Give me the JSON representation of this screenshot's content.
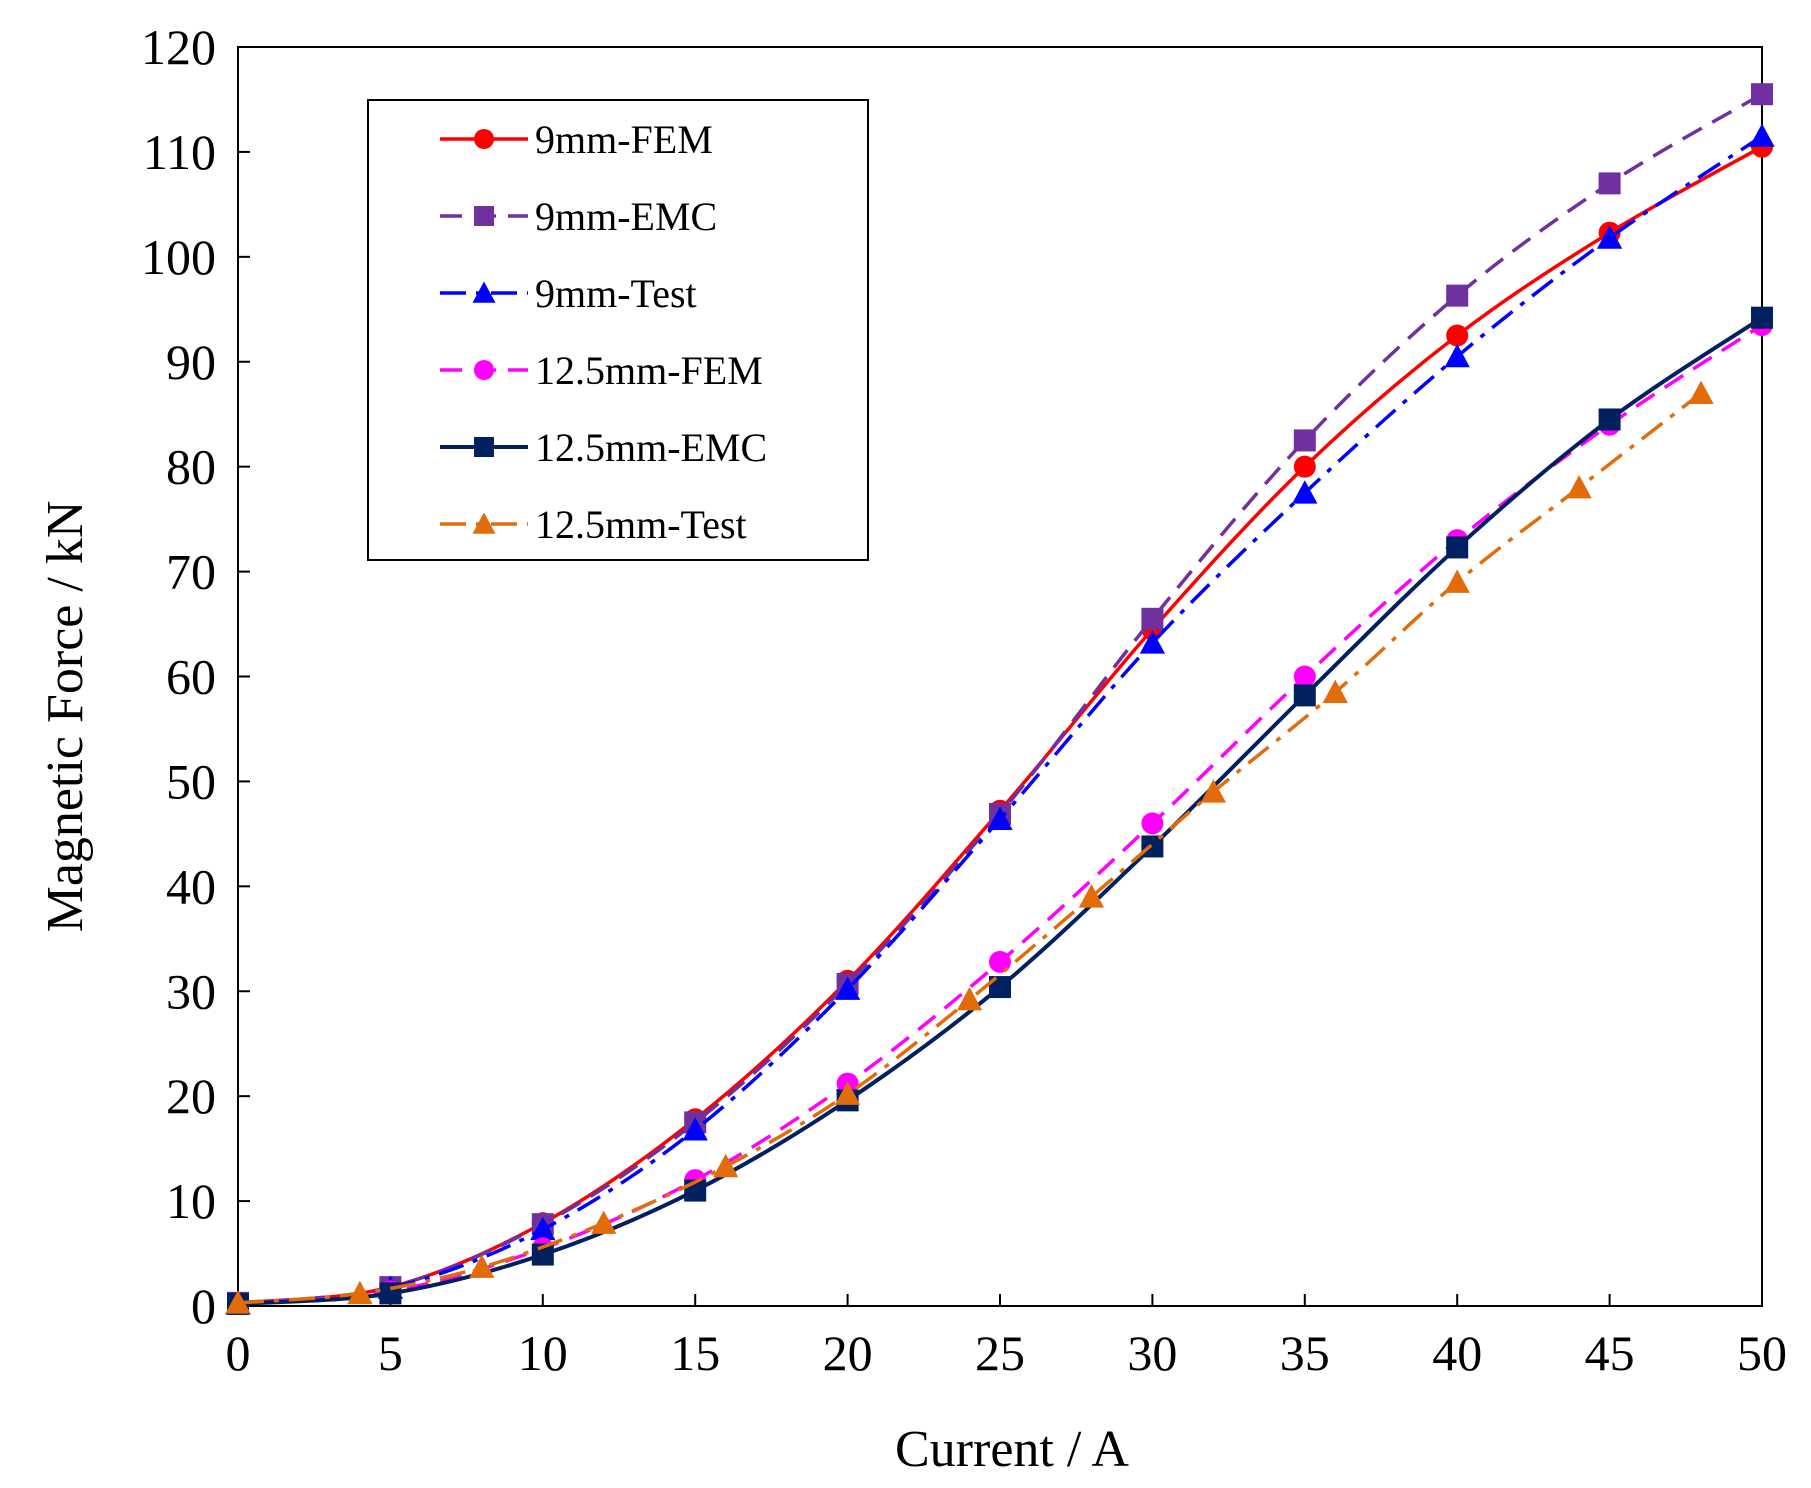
{
  "chart_data": {
    "type": "line",
    "title": "",
    "xlabel": "Current / A",
    "ylabel": "Magnetic Force / kN",
    "xlim": [
      0,
      50
    ],
    "ylim": [
      0,
      120
    ],
    "xticks": [
      0,
      5,
      10,
      15,
      20,
      25,
      30,
      35,
      40,
      45,
      50
    ],
    "yticks": [
      0,
      10,
      20,
      30,
      40,
      50,
      60,
      70,
      80,
      90,
      100,
      110,
      120
    ],
    "grid": false,
    "legend_position": "top-left",
    "series": [
      {
        "name": "9mm-FEM",
        "color": "#ff0000",
        "line_style": "solid",
        "marker": "circle",
        "x": [
          0,
          5,
          10,
          15,
          20,
          25,
          30,
          35,
          40,
          45,
          50
        ],
        "y": [
          0.3,
          1.8,
          7.9,
          17.8,
          31.0,
          47.2,
          64.5,
          80.0,
          92.5,
          102.3,
          110.5
        ]
      },
      {
        "name": "9mm-EMC",
        "color": "#7030a0",
        "line_style": "dashed",
        "marker": "square",
        "x": [
          0,
          5,
          10,
          15,
          20,
          25,
          30,
          35,
          40,
          45,
          50
        ],
        "y": [
          0.3,
          1.8,
          7.8,
          17.5,
          30.7,
          46.9,
          65.5,
          82.5,
          96.3,
          107.0,
          115.5
        ]
      },
      {
        "name": "9mm-Test",
        "color": "#0000ff",
        "line_style": "dash-dot",
        "marker": "triangle",
        "x": [
          0,
          5,
          10,
          15,
          20,
          25,
          30,
          35,
          40,
          45,
          50
        ],
        "y": [
          0.2,
          1.7,
          7.3,
          16.8,
          30.2,
          46.4,
          63.2,
          77.5,
          90.5,
          101.8,
          111.5
        ]
      },
      {
        "name": "12.5mm-FEM",
        "color": "#ff00ff",
        "line_style": "dashed",
        "marker": "circle",
        "x": [
          0,
          5,
          10,
          15,
          20,
          25,
          30,
          35,
          40,
          45,
          50
        ],
        "y": [
          0.2,
          1.4,
          5.5,
          12.0,
          21.2,
          32.8,
          46.0,
          60.0,
          73.0,
          84.0,
          93.5
        ]
      },
      {
        "name": "12.5mm-EMC",
        "color": "#002060",
        "line_style": "solid",
        "marker": "square",
        "x": [
          0,
          5,
          10,
          15,
          20,
          25,
          30,
          35,
          40,
          45,
          50
        ],
        "y": [
          0.2,
          1.2,
          4.9,
          11.0,
          19.6,
          30.4,
          43.8,
          58.2,
          72.3,
          84.5,
          94.2
        ]
      },
      {
        "name": "12.5mm-Test",
        "color": "#e36c0a",
        "line_style": "dash-dot",
        "marker": "triangle",
        "x": [
          0,
          4,
          8,
          12,
          16,
          20,
          24,
          28,
          32,
          36,
          40,
          44,
          48
        ],
        "y": [
          0.3,
          1.2,
          3.7,
          7.9,
          13.3,
          20.2,
          29.2,
          39.0,
          49.0,
          58.5,
          69.0,
          78.0,
          87.0
        ]
      }
    ]
  }
}
